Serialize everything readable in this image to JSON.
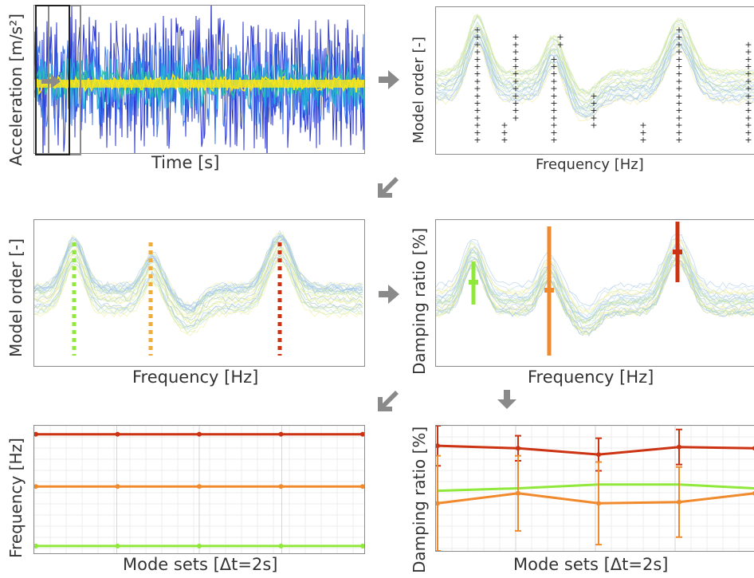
{
  "panels": {
    "signal": {
      "xlabel": "Time [s]",
      "ylabel": "Acceleration [m/s²]"
    },
    "stabilization": {
      "xlabel": "Frequency [Hz]",
      "ylabel": "Model order [-]"
    },
    "clusters": {
      "xlabel": "Frequency [Hz]",
      "ylabel": "Model order [-]"
    },
    "damping": {
      "xlabel": "Frequency [Hz]",
      "ylabel": "Damping ratio [%]"
    },
    "freq_tracking": {
      "xlabel": "Mode sets [Δt=2s]",
      "ylabel": "Frequency [Hz]"
    },
    "damp_tracking": {
      "xlabel": "Mode sets [Δt=2s]",
      "ylabel": "Damping ratio [%]"
    }
  },
  "colors": {
    "mode1": "#8fe83a",
    "mode2": "#f0ab3a",
    "mode2_damp": "#f08a2c",
    "mode3": "#cc3312",
    "arrow": "#8a8a8a",
    "signal_blue": "#2b3bd6",
    "signal_yellow": "#f5e61a"
  },
  "chart_data": [
    {
      "type": "line",
      "panel": "freq_tracking",
      "xlabel": "Mode sets [Δt=2s]",
      "ylabel": "Frequency [Hz]",
      "x": [
        1,
        2,
        3,
        4,
        5
      ],
      "series": [
        {
          "values": [
            0.98,
            0.98,
            0.98,
            0.98,
            0.98
          ],
          "color": "#cc3312"
        },
        {
          "values": [
            0.55,
            0.55,
            0.55,
            0.55,
            0.55
          ],
          "color": "#f08a2c"
        },
        {
          "values": [
            0.06,
            0.06,
            0.06,
            0.06,
            0.06
          ],
          "color": "#8fe83a"
        }
      ],
      "ylim": [
        0,
        1.05
      ],
      "grid": true
    },
    {
      "type": "line",
      "panel": "damp_tracking",
      "xlabel": "Mode sets [Δt=2s]",
      "ylabel": "Damping ratio [%]",
      "x": [
        1,
        2,
        3,
        4,
        5
      ],
      "series": [
        {
          "values": [
            0.84,
            0.82,
            0.77,
            0.83,
            0.82
          ],
          "err": [
            0.16,
            0.1,
            0.13,
            0.14,
            0.0
          ],
          "color": "#cc3312"
        },
        {
          "values": [
            0.38,
            0.46,
            0.38,
            0.39,
            0.46
          ],
          "err": [
            0.38,
            0.3,
            0.33,
            0.28,
            0.0
          ],
          "color": "#f08a2c"
        },
        {
          "values": [
            0.48,
            0.5,
            0.53,
            0.53,
            0.5
          ],
          "color": "#8fe83a"
        }
      ],
      "ylim": [
        0,
        1
      ],
      "grid": true
    }
  ]
}
